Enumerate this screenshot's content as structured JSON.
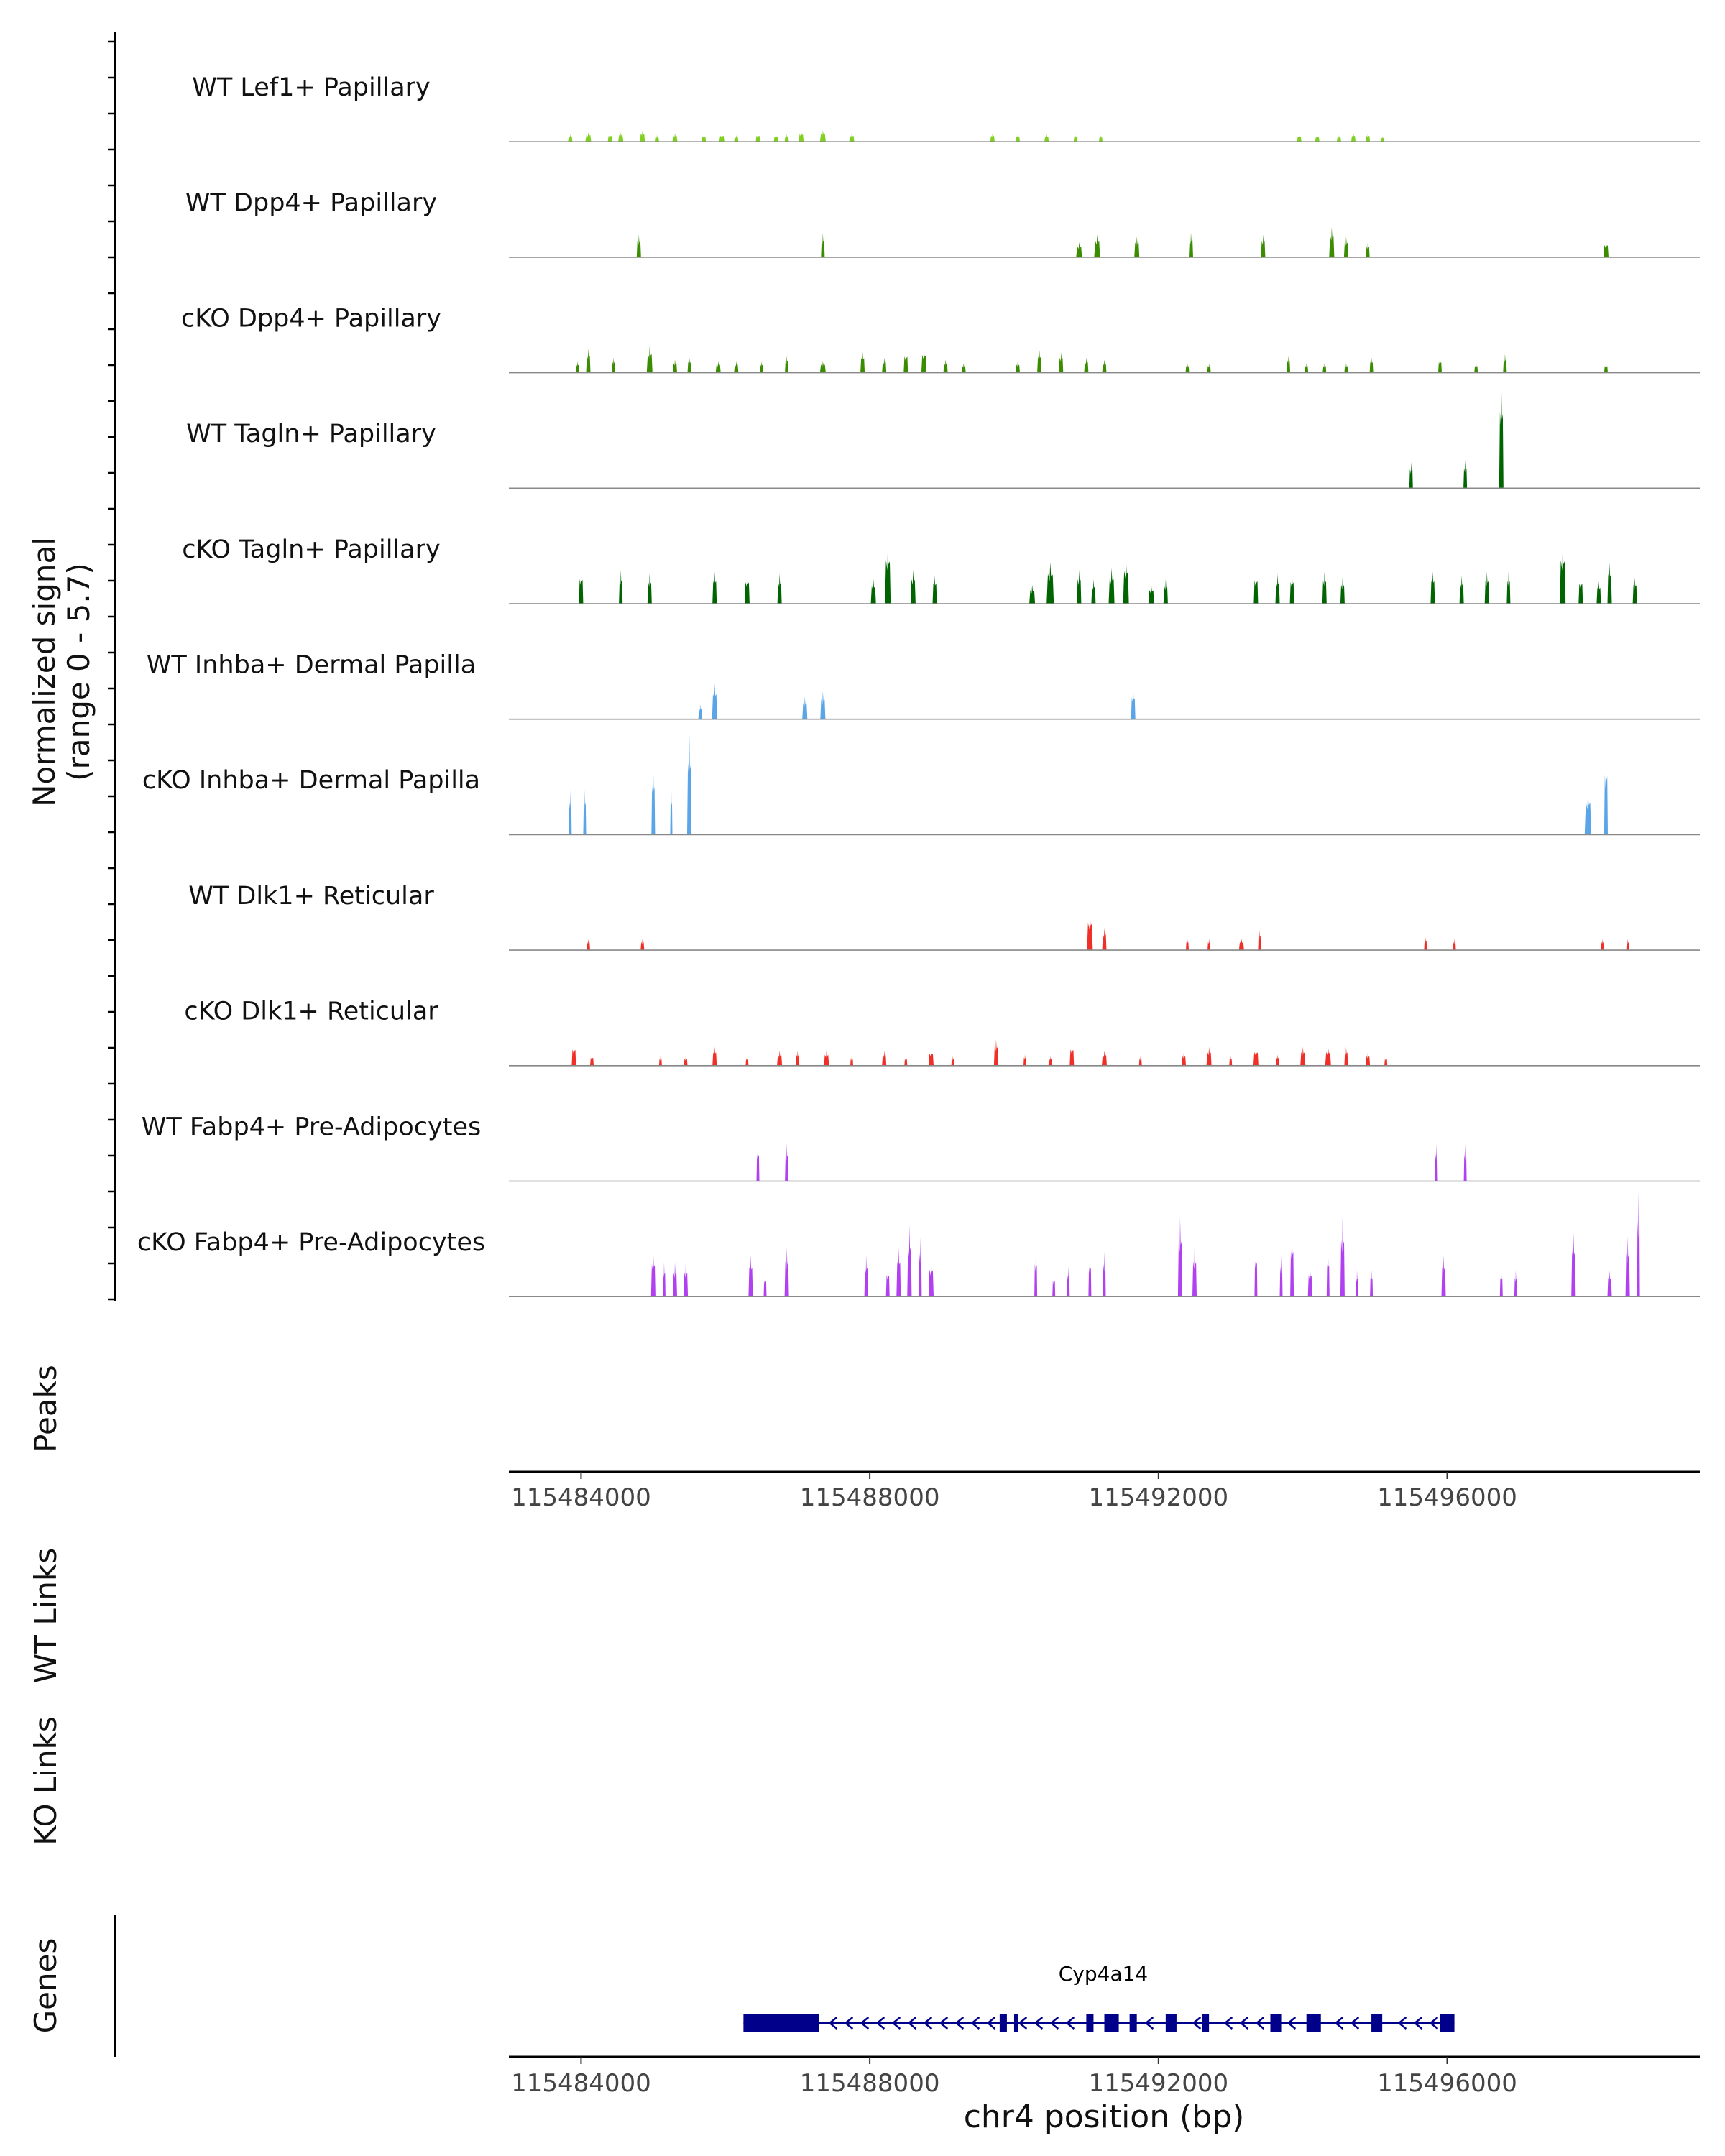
{
  "chart_data": {
    "type": "area",
    "title": "",
    "ylabel_main": [
      "Normalized signal",
      "(range 0 - 5.7)"
    ],
    "y_range": [
      0,
      5.7
    ],
    "x_range": [
      115483000,
      115499500
    ],
    "xlabel": "chr4 position (bp)",
    "x_ticks": [
      "115484000",
      "115488000",
      "115492000",
      "115496000"
    ],
    "x_tick_values": [
      115484000,
      115488000,
      115492000,
      115496000
    ],
    "panel_labels": {
      "peaks": "Peaks",
      "wt_links": "WT Links",
      "ko_links": "KO Links",
      "genes": "Genes"
    },
    "series": [
      {
        "name": "WT Lef1+ Papillary",
        "color": "#7fd01f",
        "peaks": [
          [
            115483850,
            60,
            0.4
          ],
          [
            115484100,
            80,
            0.5
          ],
          [
            115484400,
            60,
            0.45
          ],
          [
            115484550,
            70,
            0.5
          ],
          [
            115484850,
            70,
            0.6
          ],
          [
            115485050,
            60,
            0.35
          ],
          [
            115485300,
            70,
            0.45
          ],
          [
            115485700,
            60,
            0.4
          ],
          [
            115485950,
            70,
            0.45
          ],
          [
            115486150,
            60,
            0.35
          ],
          [
            115486450,
            60,
            0.45
          ],
          [
            115486700,
            60,
            0.4
          ],
          [
            115486850,
            60,
            0.4
          ],
          [
            115487050,
            70,
            0.55
          ],
          [
            115487350,
            80,
            0.6
          ],
          [
            115487750,
            70,
            0.45
          ],
          [
            115489700,
            60,
            0.45
          ],
          [
            115490050,
            60,
            0.4
          ],
          [
            115490450,
            60,
            0.4
          ],
          [
            115490850,
            50,
            0.35
          ],
          [
            115491200,
            50,
            0.35
          ],
          [
            115493950,
            60,
            0.4
          ],
          [
            115494200,
            60,
            0.35
          ],
          [
            115494500,
            60,
            0.35
          ],
          [
            115494700,
            60,
            0.45
          ],
          [
            115494900,
            60,
            0.45
          ],
          [
            115495100,
            50,
            0.3
          ]
        ]
      },
      {
        "name": "WT Dpp4+ Papillary",
        "color": "#3a8c00",
        "peaks": [
          [
            115484800,
            60,
            1.2
          ],
          [
            115487350,
            50,
            1.3
          ],
          [
            115490900,
            80,
            0.8
          ],
          [
            115491150,
            80,
            1.2
          ],
          [
            115491700,
            70,
            1.1
          ],
          [
            115492450,
            60,
            1.3
          ],
          [
            115493450,
            60,
            1.2
          ],
          [
            115494400,
            70,
            1.6
          ],
          [
            115494600,
            60,
            1.1
          ],
          [
            115494900,
            50,
            0.8
          ],
          [
            115498200,
            70,
            0.9
          ]
        ]
      },
      {
        "name": "cKO Dpp4+ Papillary",
        "color": "#3a8c00",
        "peaks": [
          [
            115483950,
            50,
            0.6
          ],
          [
            115484100,
            60,
            1.3
          ],
          [
            115484450,
            50,
            0.8
          ],
          [
            115484950,
            80,
            1.4
          ],
          [
            115485300,
            60,
            0.7
          ],
          [
            115485500,
            50,
            0.8
          ],
          [
            115485900,
            70,
            0.6
          ],
          [
            115486150,
            60,
            0.6
          ],
          [
            115486500,
            50,
            0.6
          ],
          [
            115486850,
            50,
            0.9
          ],
          [
            115487350,
            80,
            0.6
          ],
          [
            115487900,
            60,
            1.1
          ],
          [
            115488200,
            60,
            0.8
          ],
          [
            115488500,
            60,
            1.2
          ],
          [
            115488750,
            70,
            1.3
          ],
          [
            115489050,
            60,
            0.7
          ],
          [
            115489300,
            60,
            0.5
          ],
          [
            115490050,
            60,
            0.6
          ],
          [
            115490350,
            60,
            1.2
          ],
          [
            115490650,
            60,
            1.1
          ],
          [
            115491000,
            60,
            0.8
          ],
          [
            115491250,
            60,
            0.7
          ],
          [
            115492400,
            50,
            0.5
          ],
          [
            115492700,
            50,
            0.5
          ],
          [
            115493800,
            50,
            0.9
          ],
          [
            115494050,
            50,
            0.5
          ],
          [
            115494300,
            50,
            0.5
          ],
          [
            115494600,
            50,
            0.5
          ],
          [
            115494950,
            50,
            0.8
          ],
          [
            115495900,
            50,
            0.8
          ],
          [
            115496400,
            50,
            0.5
          ],
          [
            115496800,
            50,
            1.0
          ],
          [
            115498200,
            50,
            0.5
          ]
        ]
      },
      {
        "name": "WT Tagln+ Papillary",
        "color": "#006400",
        "peaks": [
          [
            115495500,
            50,
            1.4
          ],
          [
            115496250,
            50,
            1.5
          ],
          [
            115496750,
            60,
            5.6
          ]
        ]
      },
      {
        "name": "cKO Tagln+ Papillary",
        "color": "#006400",
        "peaks": [
          [
            115484000,
            60,
            1.8
          ],
          [
            115484550,
            50,
            1.8
          ],
          [
            115484950,
            60,
            1.6
          ],
          [
            115485850,
            60,
            1.7
          ],
          [
            115486300,
            70,
            1.6
          ],
          [
            115486750,
            60,
            1.6
          ],
          [
            115488050,
            70,
            1.3
          ],
          [
            115488250,
            80,
            3.2
          ],
          [
            115488600,
            70,
            1.8
          ],
          [
            115488900,
            60,
            1.5
          ],
          [
            115490250,
            80,
            1.0
          ],
          [
            115490500,
            100,
            2.2
          ],
          [
            115490900,
            60,
            1.8
          ],
          [
            115491100,
            60,
            1.3
          ],
          [
            115491350,
            80,
            1.9
          ],
          [
            115491550,
            80,
            2.4
          ],
          [
            115491900,
            80,
            1.0
          ],
          [
            115492100,
            60,
            1.3
          ],
          [
            115493350,
            60,
            1.7
          ],
          [
            115493650,
            60,
            1.6
          ],
          [
            115493850,
            60,
            1.6
          ],
          [
            115494300,
            60,
            1.7
          ],
          [
            115494550,
            60,
            1.4
          ],
          [
            115495800,
            60,
            1.7
          ],
          [
            115496200,
            60,
            1.5
          ],
          [
            115496550,
            60,
            1.7
          ],
          [
            115496850,
            50,
            1.7
          ],
          [
            115497600,
            80,
            3.2
          ],
          [
            115497850,
            60,
            1.5
          ],
          [
            115498100,
            60,
            1.2
          ],
          [
            115498250,
            60,
            2.2
          ],
          [
            115498600,
            60,
            1.4
          ]
        ]
      },
      {
        "name": "WT Inhba+ Dermal Papilla",
        "color": "#5aa5e8",
        "peaks": [
          [
            115485650,
            50,
            0.8
          ],
          [
            115485850,
            70,
            1.9
          ],
          [
            115487100,
            70,
            1.2
          ],
          [
            115487350,
            70,
            1.5
          ],
          [
            115491650,
            60,
            1.6
          ]
        ]
      },
      {
        "name": "cKO Inhba+ Dermal Papilla",
        "color": "#5aa5e8",
        "peaks": [
          [
            115483850,
            40,
            2.4
          ],
          [
            115484050,
            40,
            2.4
          ],
          [
            115485000,
            50,
            3.6
          ],
          [
            115485250,
            30,
            2.4
          ],
          [
            115485500,
            60,
            5.3
          ],
          [
            115497950,
            90,
            2.4
          ],
          [
            115498200,
            50,
            4.4
          ]
        ]
      },
      {
        "name": "WT Dlk1+ Reticular",
        "color": "#f03028",
        "peaks": [
          [
            115484100,
            50,
            0.6
          ],
          [
            115484850,
            50,
            0.6
          ],
          [
            115491050,
            80,
            2.0
          ],
          [
            115491250,
            60,
            1.2
          ],
          [
            115492400,
            40,
            0.6
          ],
          [
            115492700,
            40,
            0.6
          ],
          [
            115493150,
            70,
            0.6
          ],
          [
            115493400,
            40,
            1.1
          ],
          [
            115495700,
            40,
            0.7
          ],
          [
            115496100,
            40,
            0.6
          ],
          [
            115498150,
            40,
            0.6
          ],
          [
            115498500,
            40,
            0.6
          ]
        ]
      },
      {
        "name": "cKO Dlk1+ Reticular",
        "color": "#f03028",
        "peaks": [
          [
            115483900,
            60,
            1.2
          ],
          [
            115484150,
            50,
            0.6
          ],
          [
            115485100,
            40,
            0.5
          ],
          [
            115485450,
            50,
            0.5
          ],
          [
            115485850,
            60,
            1.0
          ],
          [
            115486300,
            40,
            0.5
          ],
          [
            115486750,
            70,
            0.8
          ],
          [
            115487000,
            50,
            0.8
          ],
          [
            115487400,
            70,
            0.8
          ],
          [
            115487750,
            40,
            0.5
          ],
          [
            115488200,
            60,
            0.8
          ],
          [
            115488500,
            40,
            0.5
          ],
          [
            115488850,
            70,
            0.9
          ],
          [
            115489150,
            40,
            0.5
          ],
          [
            115489750,
            60,
            1.4
          ],
          [
            115490150,
            40,
            0.6
          ],
          [
            115490500,
            50,
            0.5
          ],
          [
            115490800,
            60,
            1.2
          ],
          [
            115491250,
            70,
            0.8
          ],
          [
            115491750,
            40,
            0.5
          ],
          [
            115492350,
            60,
            0.7
          ],
          [
            115492700,
            70,
            1.0
          ],
          [
            115493000,
            40,
            0.5
          ],
          [
            115493350,
            70,
            1.0
          ],
          [
            115493650,
            40,
            0.6
          ],
          [
            115494000,
            70,
            1.0
          ],
          [
            115494350,
            80,
            1.0
          ],
          [
            115494600,
            50,
            1.0
          ],
          [
            115494900,
            60,
            0.7
          ],
          [
            115495150,
            40,
            0.5
          ]
        ]
      },
      {
        "name": "WT Fabp4+ Pre-Adipocytes",
        "color": "#b040f0",
        "peaks": [
          [
            115486450,
            40,
            2.0
          ],
          [
            115486850,
            50,
            2.0
          ],
          [
            115495850,
            40,
            2.0
          ],
          [
            115496250,
            40,
            2.0
          ]
        ]
      },
      {
        "name": "cKO Fabp4+ Pre-Adipocytes",
        "color": "#b040f0",
        "peaks": [
          [
            115485000,
            60,
            2.4
          ],
          [
            115485150,
            40,
            1.8
          ],
          [
            115485300,
            60,
            1.8
          ],
          [
            115485450,
            60,
            1.8
          ],
          [
            115486350,
            60,
            2.2
          ],
          [
            115486550,
            40,
            1.2
          ],
          [
            115486850,
            60,
            2.6
          ],
          [
            115487950,
            50,
            2.2
          ],
          [
            115488250,
            50,
            1.6
          ],
          [
            115488400,
            60,
            2.6
          ],
          [
            115488550,
            60,
            3.8
          ],
          [
            115488700,
            40,
            3.2
          ],
          [
            115488850,
            70,
            2.0
          ],
          [
            115490300,
            40,
            2.4
          ],
          [
            115490550,
            40,
            1.2
          ],
          [
            115490750,
            40,
            1.6
          ],
          [
            115491050,
            40,
            2.2
          ],
          [
            115491250,
            40,
            2.4
          ],
          [
            115492300,
            60,
            4.2
          ],
          [
            115492500,
            60,
            2.6
          ],
          [
            115493350,
            40,
            2.6
          ],
          [
            115493700,
            40,
            2.2
          ],
          [
            115493850,
            50,
            3.4
          ],
          [
            115494100,
            60,
            1.6
          ],
          [
            115494350,
            40,
            2.4
          ],
          [
            115494550,
            60,
            4.2
          ],
          [
            115494750,
            40,
            1.4
          ],
          [
            115494950,
            40,
            1.4
          ],
          [
            115495950,
            60,
            2.2
          ],
          [
            115496750,
            40,
            1.4
          ],
          [
            115496950,
            40,
            1.4
          ],
          [
            115497750,
            60,
            3.4
          ],
          [
            115498250,
            60,
            1.4
          ],
          [
            115498500,
            60,
            3.2
          ],
          [
            115498650,
            40,
            5.6
          ]
        ]
      }
    ],
    "gene": {
      "name": "Cyp4a14",
      "color": "#00008b",
      "strand": "-",
      "start": 115486250,
      "end": 115496100,
      "exons": [
        [
          115486250,
          115487300
        ],
        [
          115489800,
          115489900
        ],
        [
          115490000,
          115490050
        ],
        [
          115491000,
          115491100
        ],
        [
          115491250,
          115491450
        ],
        [
          115491600,
          115491700
        ],
        [
          115492100,
          115492250
        ],
        [
          115492600,
          115492700
        ],
        [
          115493550,
          115493700
        ],
        [
          115494050,
          115494250
        ],
        [
          115494950,
          115495100
        ],
        [
          115495900,
          115496100
        ]
      ]
    }
  }
}
